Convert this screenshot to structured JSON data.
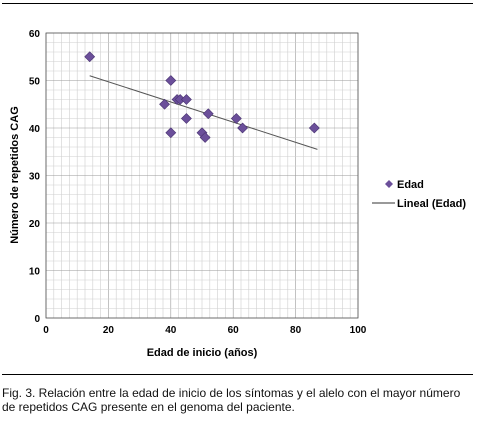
{
  "chart_data": {
    "type": "scatter",
    "xlabel": "Edad de inicio (años)",
    "ylabel": "Número de repetidos CAG",
    "xlim": [
      0,
      100
    ],
    "ylim": [
      0,
      60
    ],
    "x_ticks": [
      "0",
      "20",
      "40",
      "60",
      "80",
      "100"
    ],
    "y_ticks": [
      "0",
      "10",
      "20",
      "30",
      "40",
      "50",
      "60"
    ],
    "grid": true,
    "legend_position": "right",
    "series": [
      {
        "name": "Edad",
        "marker": "diamond",
        "color": "#6b4f9a",
        "points": [
          {
            "x": 14,
            "y": 55
          },
          {
            "x": 38,
            "y": 45
          },
          {
            "x": 40,
            "y": 50
          },
          {
            "x": 40,
            "y": 39
          },
          {
            "x": 42,
            "y": 46
          },
          {
            "x": 43,
            "y": 46
          },
          {
            "x": 45,
            "y": 46
          },
          {
            "x": 45,
            "y": 42
          },
          {
            "x": 50,
            "y": 39
          },
          {
            "x": 51,
            "y": 38
          },
          {
            "x": 52,
            "y": 43
          },
          {
            "x": 61,
            "y": 42
          },
          {
            "x": 63,
            "y": 40
          },
          {
            "x": 86,
            "y": 40
          }
        ]
      }
    ],
    "trendline": {
      "name": "Lineal (Edad)",
      "color": "#555555",
      "start": {
        "x": 14,
        "y": 51
      },
      "end": {
        "x": 87,
        "y": 35.5
      }
    }
  },
  "caption": "Fig. 3. Relación entre la edad de inicio de los síntomas y el alelo con el mayor número de repetidos CAG presente en el genoma del paciente."
}
